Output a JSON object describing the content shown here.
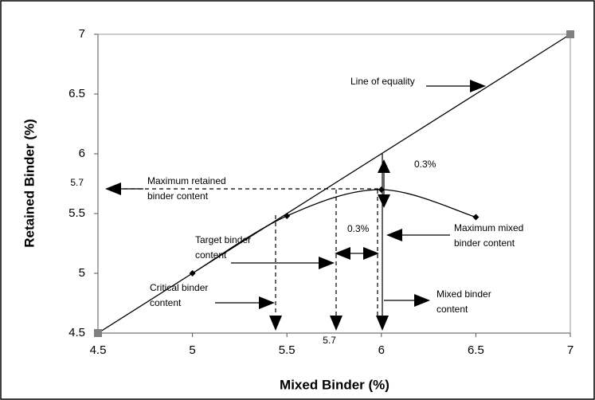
{
  "chart_data": {
    "type": "line",
    "xlabel": "Mixed Binder (%)",
    "ylabel": "Retained Binder (%)",
    "xlim": [
      4.5,
      7
    ],
    "ylim": [
      4.5,
      7
    ],
    "xticks": [
      4.5,
      5,
      5.5,
      6,
      6.5,
      7
    ],
    "yticks": [
      4.5,
      5,
      5.5,
      6,
      6.5,
      7
    ],
    "series": [
      {
        "x": [
          4.5,
          7
        ],
        "values": [
          4.5,
          7
        ],
        "color": "#000000",
        "marker": "square",
        "marker_color": "#808080",
        "smooth": false
      },
      {
        "x": [
          5,
          5.5,
          6,
          6.5
        ],
        "values": [
          5,
          5.48,
          5.7,
          5.47
        ],
        "color": "#000000",
        "marker": "diamond",
        "marker_color": "#000000",
        "smooth": true
      }
    ],
    "reference_labels": [
      {
        "axis": "y",
        "value": 5.7,
        "label": "5.7"
      },
      {
        "axis": "x",
        "value": 5.7,
        "label": "5.7"
      }
    ],
    "annotations": [
      {
        "lines": [
          "Line of equality"
        ]
      },
      {
        "lines": [
          "0.3%"
        ]
      },
      {
        "lines": [
          "Maximum retained",
          "binder content"
        ]
      },
      {
        "lines": [
          "0.3%"
        ]
      },
      {
        "lines": [
          "Maximum mixed",
          "binder content"
        ]
      },
      {
        "lines": [
          "Target binder",
          "content"
        ]
      },
      {
        "lines": [
          "Critical binder",
          "content"
        ]
      },
      {
        "lines": [
          "Mixed binder",
          "content"
        ]
      }
    ]
  }
}
